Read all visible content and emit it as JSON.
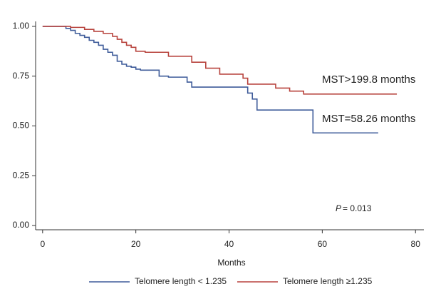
{
  "chart_data": {
    "type": "line",
    "step": "post",
    "xlabel": "Months",
    "xlim": [
      -1.5,
      81.8
    ],
    "ylim": [
      -0.0215,
      1.025
    ],
    "xticks": [
      0,
      20,
      40,
      60,
      80
    ],
    "yticks": [
      {
        "value": 0,
        "label": "0.00"
      },
      {
        "value": 0.25,
        "label": "0.25"
      },
      {
        "value": 0.5,
        "label": "0.50"
      },
      {
        "value": 0.75,
        "label": "0.75"
      },
      {
        "value": 1,
        "label": "1.00"
      }
    ],
    "series": [
      {
        "name": "Telomere length < 1.235",
        "color": "#3f5c9a",
        "x": [
          0,
          5,
          6,
          7,
          8,
          9,
          10,
          11,
          12,
          13,
          14,
          15,
          16,
          17,
          18,
          19,
          20,
          21,
          25,
          27,
          31,
          32,
          44,
          45,
          46,
          58,
          72
        ],
        "values": [
          1.0,
          0.99,
          0.98,
          0.965,
          0.955,
          0.945,
          0.93,
          0.92,
          0.905,
          0.885,
          0.87,
          0.855,
          0.825,
          0.81,
          0.8,
          0.795,
          0.785,
          0.78,
          0.75,
          0.745,
          0.72,
          0.695,
          0.665,
          0.635,
          0.58,
          0.465,
          0.465
        ]
      },
      {
        "name": "Telomere length ≥1.235",
        "color": "#b8443e",
        "x": [
          0,
          6,
          9,
          11,
          13,
          15,
          16,
          17,
          18,
          19,
          20,
          22,
          27,
          32,
          35,
          38,
          43,
          44,
          50,
          53,
          56,
          76
        ],
        "values": [
          1.0,
          0.995,
          0.985,
          0.975,
          0.965,
          0.95,
          0.935,
          0.92,
          0.905,
          0.895,
          0.875,
          0.87,
          0.85,
          0.82,
          0.79,
          0.76,
          0.74,
          0.71,
          0.69,
          0.675,
          0.66,
          0.66
        ]
      }
    ],
    "annotations": [
      "MST>199.8 months",
      "MST=58.26 months",
      "P",
      "= 0.013"
    ]
  }
}
